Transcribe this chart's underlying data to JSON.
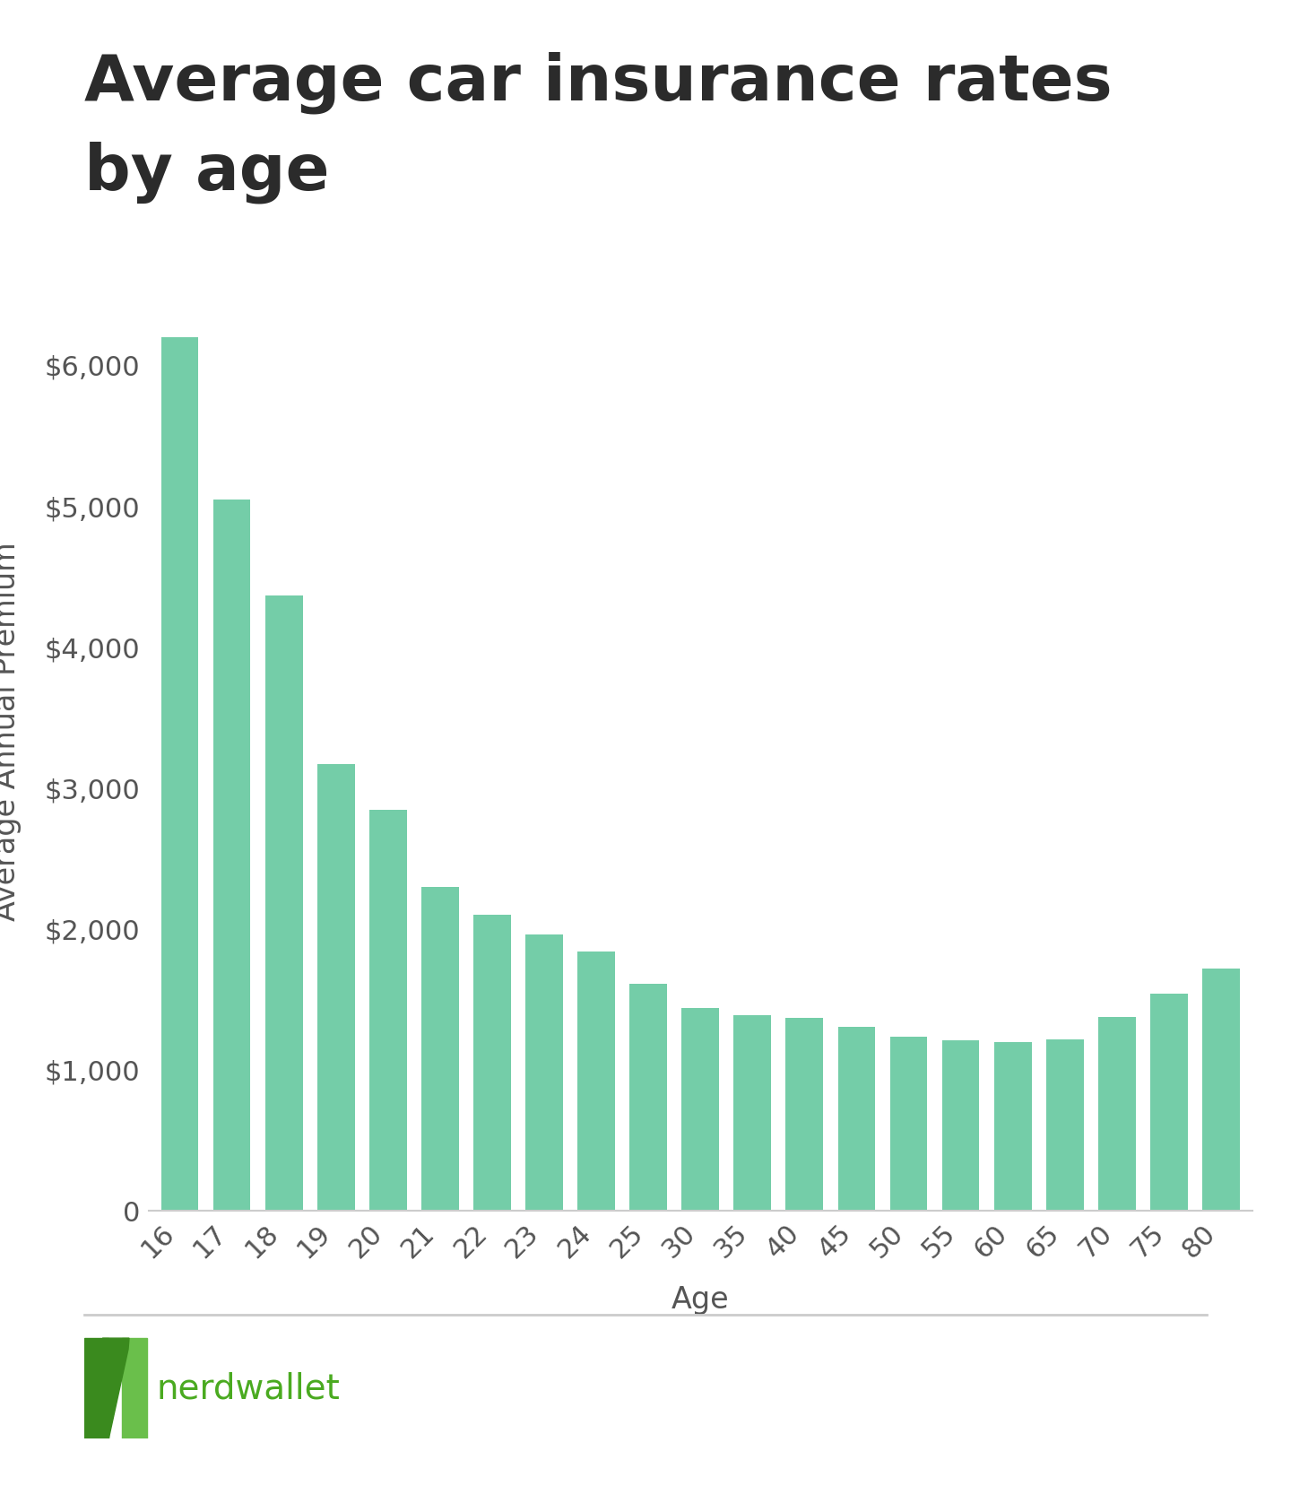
{
  "title_line1": "Average car insurance rates",
  "title_line2": "by age",
  "xlabel": "Age",
  "ylabel": "Average Annual Premium",
  "categories": [
    "16",
    "17",
    "18",
    "19",
    "20",
    "21",
    "22",
    "23",
    "24",
    "25",
    "30",
    "35",
    "40",
    "45",
    "50",
    "55",
    "60",
    "65",
    "70",
    "75",
    "80"
  ],
  "values": [
    6200,
    5050,
    4370,
    3170,
    2850,
    2300,
    2100,
    1960,
    1840,
    1610,
    1440,
    1390,
    1370,
    1310,
    1240,
    1210,
    1200,
    1220,
    1380,
    1540,
    1720
  ],
  "bar_color": "#74CDA8",
  "background_color": "#ffffff",
  "title_color": "#2b2b2b",
  "axis_label_color": "#555555",
  "tick_label_color": "#555555",
  "ytick_labels": [
    "0",
    "$1,000",
    "$2,000",
    "$3,000",
    "$4,000",
    "$5,000",
    "$6,000"
  ],
  "ytick_values": [
    0,
    1000,
    2000,
    3000,
    4000,
    5000,
    6000
  ],
  "ylim": [
    0,
    6800
  ],
  "title_fontsize": 52,
  "axis_label_fontsize": 24,
  "tick_fontsize": 22,
  "footer_line_color": "#cccccc",
  "nerdwallet_green_light": "#5cb85c",
  "nerdwallet_green_dark": "#3a7a1e",
  "nerdwallet_text_green": "#5cb85c"
}
